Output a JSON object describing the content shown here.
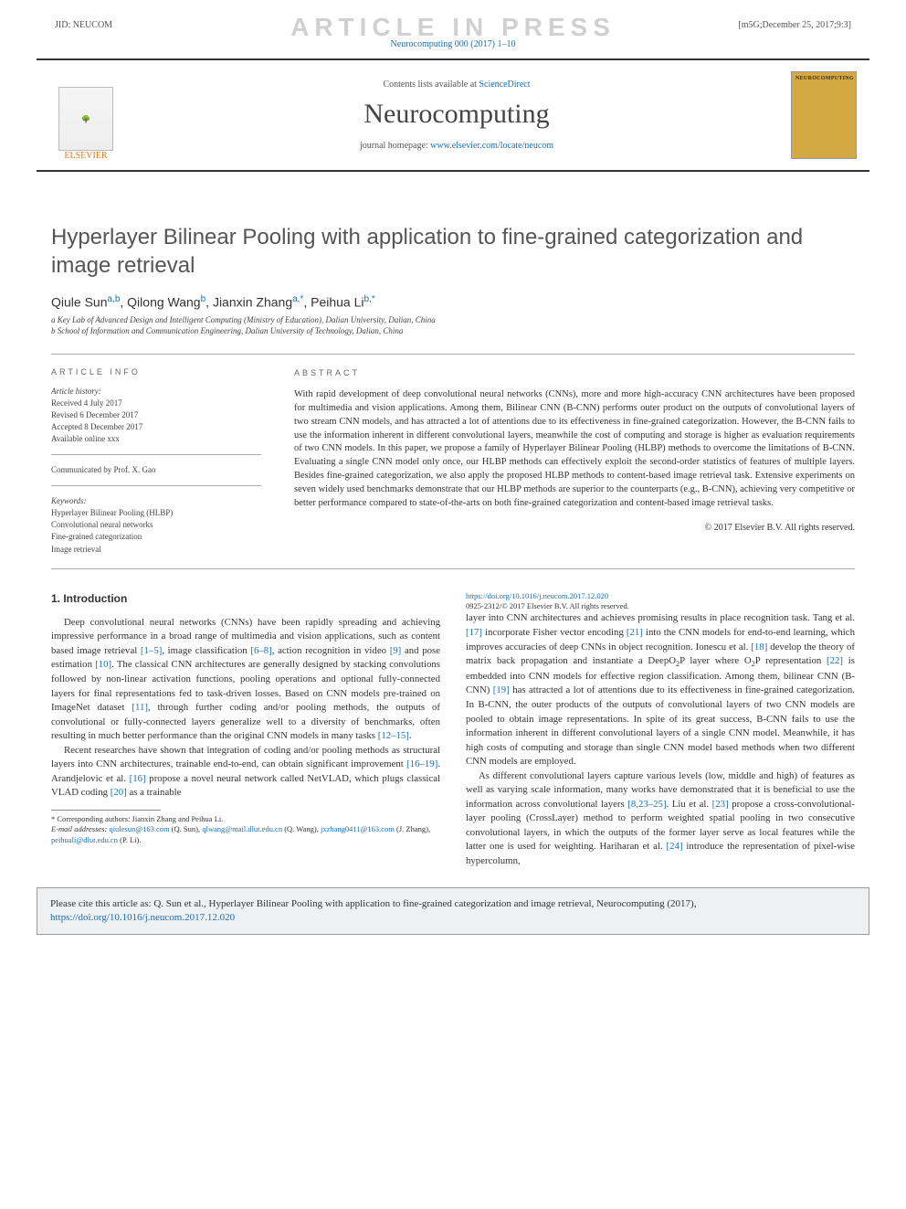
{
  "watermark": "ARTICLE IN PRESS",
  "topbar": {
    "jid": "JID: NEUCOM",
    "stamp": "[m5G;December 25, 2017;9:3]"
  },
  "journal_link": {
    "prefix": "Neurocomputing 000 (2017) 1–10",
    "text": "Neurocomputing 000 (2017) 1–10"
  },
  "header": {
    "elsevier": "ELSEVIER",
    "contents_prefix": "Contents lists available at ",
    "contents_link": "ScienceDirect",
    "journal_name": "Neurocomputing",
    "homepage_prefix": "journal homepage: ",
    "homepage_link": "www.elsevier.com/locate/neucom",
    "cover_title": "NEUROCOMPUTING"
  },
  "title": "Hyperlayer Bilinear Pooling with application to fine-grained categorization and image retrieval",
  "authors": {
    "a1": "Qiule Sun",
    "s1": "a,b",
    "a2": "Qilong Wang",
    "s2": "b",
    "a3": "Jianxin Zhang",
    "s3": "a,*",
    "a4": "Peihua Li",
    "s4": "b,*"
  },
  "affils": {
    "a": "a Key Lab of Advanced Design and Intelligent Computing (Ministry of Education), Dalian University, Dalian, China",
    "b": "b School of Information and Communication Engineering, Dalian University of Technology, Dalian, China"
  },
  "info": {
    "head": "ARTICLE INFO",
    "history_label": "Article history:",
    "received": "Received 4 July 2017",
    "revised": "Revised 6 December 2017",
    "accepted": "Accepted 8 December 2017",
    "online": "Available online xxx",
    "communicated": "Communicated by Prof. X. Gao",
    "keywords_label": "Keywords:",
    "k1": "Hyperlayer Bilinear Pooling (HLBP)",
    "k2": "Convolutional neural networks",
    "k3": "Fine-grained categorization",
    "k4": "Image retrieval"
  },
  "abstract": {
    "head": "ABSTRACT",
    "text": "With rapid development of deep convolutional neural networks (CNNs), more and more high-accuracy CNN architectures have been proposed for multimedia and vision applications. Among them, Bilinear CNN (B-CNN) performs outer product on the outputs of convolutional layers of two stream CNN models, and has attracted a lot of attentions due to its effectiveness in fine-grained categorization. However, the B-CNN fails to use the information inherent in different convolutional layers, meanwhile the cost of computing and storage is higher as evaluation requirements of two CNN models. In this paper, we propose a family of Hyperlayer Bilinear Pooling (HLBP) methods to overcome the limitations of B-CNN. Evaluating a single CNN model only once, our HLBP methods can effectively exploit the second-order statistics of features of multiple layers. Besides fine-grained categorization, we also apply the proposed HLBP methods to content-based image retrieval task. Extensive experiments on seven widely used benchmarks demonstrate that our HLBP methods are superior to the counterparts (e.g., B-CNN), achieving very competitive or better performance compared to state-of-the-arts on both fine-grained categorization and content-based image retrieval tasks.",
    "copyright": "© 2017 Elsevier B.V. All rights reserved."
  },
  "intro": {
    "head": "1. Introduction",
    "p1a": "Deep convolutional neural networks (CNNs) have been rapidly spreading and achieving impressive performance in a broad range of multimedia and vision applications, such as content based image retrieval ",
    "r1": "[1–5]",
    "p1b": ", image classification ",
    "r2": "[6–8]",
    "p1c": ", action recognition in video ",
    "r3": "[9]",
    "p1d": " and pose estimation ",
    "r4": "[10]",
    "p1e": ". The classical CNN architectures are generally designed by stacking convolutions followed by non-linear activation functions, pooling operations and optional fully-connected layers for final representations fed to task-driven losses. Based on CNN models pre-trained on ImageNet dataset ",
    "r5": "[11]",
    "p1f": ", through further coding and/or pooling methods, the outputs of convolutional or fully-connected layers generalize well to a diversity of benchmarks, often resulting in much better performance than the original CNN models in many tasks ",
    "r6": "[12–15]",
    "p1g": ".",
    "p2a": "Recent researches have shown that integration of coding and/or pooling methods as structural layers into CNN architectures, trainable end-to-end, can obtain significant improvement ",
    "r7": "[16–19]",
    "p2b": ". Arandjelovic et al. ",
    "r8": "[16]",
    "p2c": " propose a novel neural network called NetVLAD, which plugs classical VLAD coding ",
    "r9": "[20]",
    "p2d": " as a trainable ",
    "p3a": "layer into CNN architectures and achieves promising results in place recognition task. Tang et al. ",
    "r10": "[17]",
    "p3b": " incorporate Fisher vector encoding ",
    "r11": "[21]",
    "p3c": " into the CNN models for end-to-end learning, which improves accuracies of deep CNNs in object recognition. Ionescu et al. ",
    "r12": "[18]",
    "p3d": " develop the theory of matrix back propagation and instantiate a DeepO",
    "p3e": "P layer where O",
    "p3f": "P representation ",
    "r13": "[22]",
    "p3g": " is embedded into CNN models for effective region classification. Among them, bilinear CNN (B-CNN) ",
    "r14": "[19]",
    "p3h": " has attracted a lot of attentions due to its effectiveness in fine-grained categorization. In B-CNN, the outer products of the outputs of convolutional layers of two CNN models are pooled to obtain image representations. In spite of its great success, B-CNN fails to use the information inherent in different convolutional layers of a single CNN model. Meanwhile, it has high costs of computing and storage than single CNN model based methods when two different CNN models are employed.",
    "p4a": "As different convolutional layers capture various levels (low, middle and high) of features as well as varying scale information, many works have demonstrated that it is beneficial to use the information across convolutional layers ",
    "r15": "[8,23–25]",
    "p4b": ". Liu et al. ",
    "r16": "[23]",
    "p4c": " propose a cross-convolutional-layer pooling (CrossLayer) method to perform weighted spatial pooling in two consecutive convolutional layers, in which the outputs of the former layer serve as local features while the latter one is used for weighting. Hariharan et al. ",
    "r17": "[24]",
    "p4d": " introduce the representation of pixel-wise hypercolumn,"
  },
  "footnote": {
    "corr": "* Corresponding authors: Jianxin Zhang and Peihua Li.",
    "email_label": "E-mail addresses:",
    "e1": "qiulesun@163.com",
    "n1": "(Q. Sun),",
    "e2": "qlwang@mail.dlut.edu.cn",
    "n2": "(Q. Wang),",
    "e3": "jxzhang0411@163.com",
    "n3": "(J. Zhang),",
    "e4": "peihuali@dlut.edu.cn",
    "n4": "(P. Li)."
  },
  "doi": {
    "link": "https://doi.org/10.1016/j.neucom.2017.12.020",
    "issn": "0925-2312/© 2017 Elsevier B.V. All rights reserved."
  },
  "citebox": {
    "prefix": "Please cite this article as: Q. Sun et al., Hyperlayer Bilinear Pooling with application to fine-grained categorization and image retrieval, Neurocomputing (2017), ",
    "link": "https://doi.org/10.1016/j.neucom.2017.12.020"
  },
  "colors": {
    "link": "#1a6fb5",
    "text": "#333333",
    "muted": "#666666",
    "watermark": "#d0d0d0",
    "citebg": "#eef0f2"
  }
}
